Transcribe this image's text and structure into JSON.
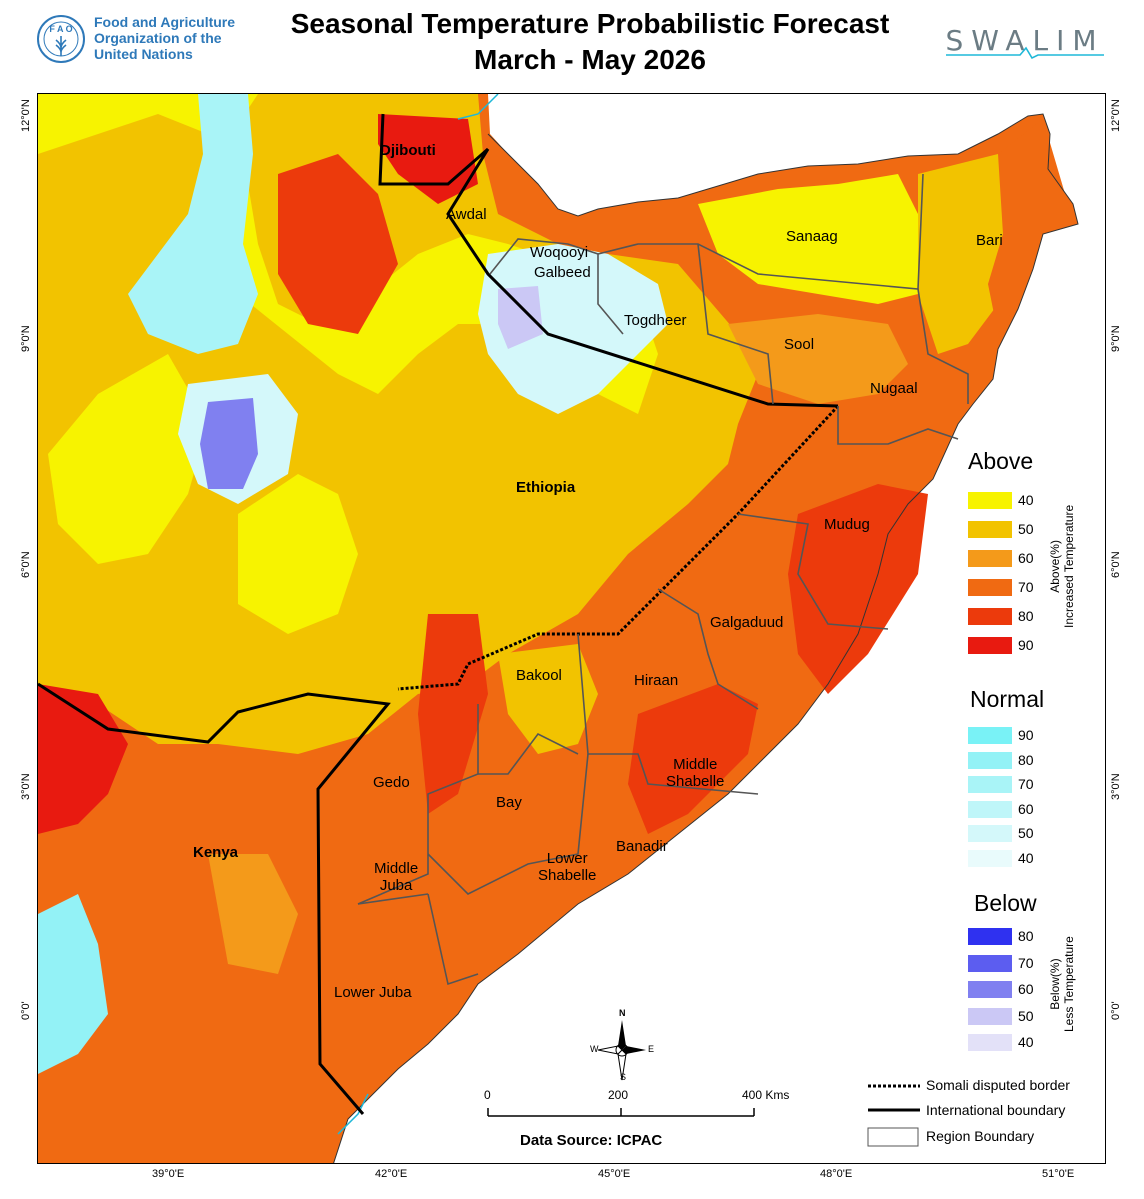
{
  "header": {
    "org_line1": "Food and Agriculture",
    "org_line2": "Organization of the",
    "org_line3": "United Nations",
    "title_line1": "Seasonal Temperature Probabilistic Forecast",
    "title_line2": "March - May 2026",
    "partner_logo": "SWALIM",
    "fao_logo_icon": "fao-wheat-emblem-icon"
  },
  "map": {
    "latitude_labels": [
      "12°0'N",
      "9°0'N",
      "6°0'N",
      "3°0'N",
      "0°0'"
    ],
    "longitude_labels": [
      "39°0'E",
      "42°0'E",
      "45°0'E",
      "48°0'E",
      "51°0'E"
    ],
    "places": {
      "djibouti": "Djibouti",
      "ethiopia": "Ethiopia",
      "kenya": "Kenya",
      "awdal": "Awdal",
      "woqooyi": "Woqooyi",
      "galbeed": "Galbeed",
      "togdheer": "Togdheer",
      "sanaag": "Sanaag",
      "bari": "Bari",
      "sool": "Sool",
      "nugaal": "Nugaal",
      "mudug": "Mudug",
      "galgaduud": "Galgaduud",
      "bakool": "Bakool",
      "hiraan": "Hiraan",
      "middle_shabelle_1": "Middle",
      "middle_shabelle_2": "Shabelle",
      "gedo": "Gedo",
      "bay": "Bay",
      "banadir": "Banadir",
      "lower_shabelle_1": "Lower",
      "lower_shabelle_2": "Shabelle",
      "middle_juba_1": "Middle",
      "middle_juba_2": "Juba",
      "lower_juba": "Lower Juba"
    },
    "colors": {
      "sea": "#ffffff",
      "coast": "#1fb8d8"
    }
  },
  "legend": {
    "above": {
      "title": "Above",
      "caption_1": "Above(%)",
      "caption_2": "Increased Temperature",
      "items": [
        {
          "label": "40",
          "color": "#f7f300"
        },
        {
          "label": "50",
          "color": "#f2c300"
        },
        {
          "label": "60",
          "color": "#f49a1a"
        },
        {
          "label": "70",
          "color": "#f06a12"
        },
        {
          "label": "80",
          "color": "#ec3a0c"
        },
        {
          "label": "90",
          "color": "#e81a10"
        }
      ]
    },
    "normal": {
      "title": "Normal",
      "items": [
        {
          "label": "90",
          "color": "#79f2f6"
        },
        {
          "label": "80",
          "color": "#93f2f6"
        },
        {
          "label": "70",
          "color": "#a9f4f7"
        },
        {
          "label": "60",
          "color": "#bff6f9"
        },
        {
          "label": "50",
          "color": "#d4f8fa"
        },
        {
          "label": "40",
          "color": "#e9fbfc"
        }
      ]
    },
    "below": {
      "title": "Below",
      "caption_1": "Below(%)",
      "caption_2": "Less Temperature",
      "items": [
        {
          "label": "80",
          "color": "#2f31f0"
        },
        {
          "label": "70",
          "color": "#5c5df0"
        },
        {
          "label": "60",
          "color": "#8080f0"
        },
        {
          "label": "50",
          "color": "#cbc8f5"
        },
        {
          "label": "40",
          "color": "#e3e1f8"
        }
      ]
    }
  },
  "boundaries": {
    "disputed": "Somali disputed border",
    "international": "International boundary",
    "region": "Region Boundary"
  },
  "compass": {
    "n": "N",
    "s": "S",
    "e": "E",
    "w": "W"
  },
  "scale": {
    "l0": "0",
    "l1": "200",
    "l2": "400 Kms"
  },
  "data_source": "Data Source: ICPAC"
}
